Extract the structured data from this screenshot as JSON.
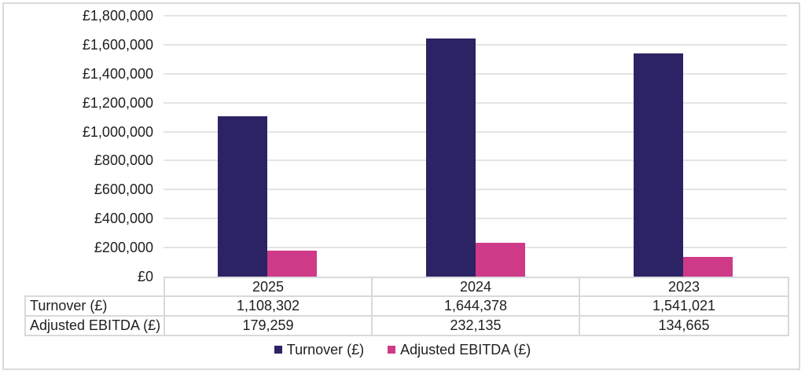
{
  "chart_data": {
    "type": "bar",
    "categories": [
      "2025",
      "2024",
      "2023"
    ],
    "series": [
      {
        "name": "Turnover (£)",
        "color": "#2b2364",
        "values": [
          1108302,
          1644378,
          1541021
        ]
      },
      {
        "name": "Adjusted EBITDA (£)",
        "color": "#ce3a88",
        "values": [
          179259,
          232135,
          134665
        ]
      }
    ],
    "title": "",
    "xlabel": "",
    "ylabel": "",
    "ylim": [
      0,
      1800000
    ],
    "ytick_step": 200000,
    "ytick_labels": [
      "£0",
      "£200,000",
      "£400,000",
      "£600,000",
      "£800,000",
      "£1,000,000",
      "£1,200,000",
      "£1,400,000",
      "£1,600,000",
      "£1,800,000"
    ],
    "grid": true,
    "legend_position": "bottom"
  },
  "table": {
    "columns": [
      "2025",
      "2024",
      "2023"
    ],
    "rows": [
      {
        "label": "Turnover (£)",
        "values": [
          "1,108,302",
          "1,644,378",
          "1,541,021"
        ]
      },
      {
        "label": "Adjusted EBITDA (£)",
        "values": [
          "179,259",
          "232,135",
          "134,665"
        ]
      }
    ]
  },
  "legend": {
    "items": [
      {
        "label": "Turnover (£)",
        "color": "#2b2364"
      },
      {
        "label": "Adjusted EBITDA (£)",
        "color": "#ce3a88"
      }
    ]
  },
  "colors": {
    "turnover_bar": "#2b2364",
    "ebitda_bar": "#ce3a88",
    "gridline": "#e4e4e4",
    "table_border": "#d9d9d9",
    "frame_border": "#dadada",
    "text": "#1f1f1f"
  }
}
